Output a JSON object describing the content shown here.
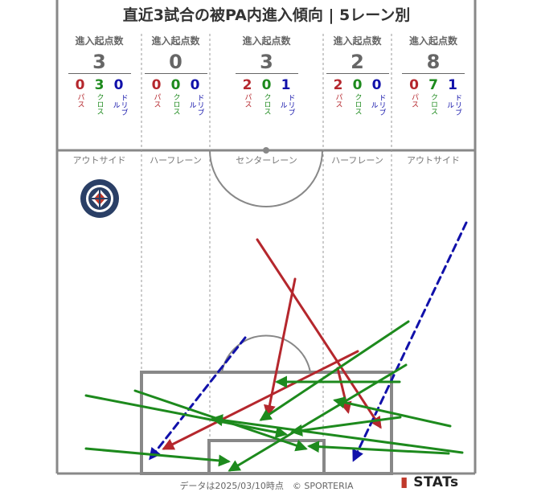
{
  "title": "直近3試合の被PA内進入傾向 | 5レーン別",
  "header_label": "進入起点数",
  "type_labels": {
    "pass": "パス",
    "cross": "クロス",
    "dribble": "ドリブル"
  },
  "colors": {
    "pass": "#b5272d",
    "cross": "#1d8a1d",
    "dribble": "#1111aa",
    "line": "#888888"
  },
  "chart_data": {
    "type": "pitch-map",
    "lanes": [
      {
        "name": "アウトサイド",
        "total": "3",
        "pass": "0",
        "cross": "3",
        "dribble": "0"
      },
      {
        "name": "ハーフレーン",
        "total": "0",
        "pass": "0",
        "cross": "0",
        "dribble": "0"
      },
      {
        "name": "センターレーン",
        "total": "3",
        "pass": "2",
        "cross": "0",
        "dribble": "1"
      },
      {
        "name": "ハーフレーン",
        "total": "2",
        "pass": "2",
        "cross": "0",
        "dribble": "0"
      },
      {
        "name": "アウトサイド",
        "total": "8",
        "pass": "0",
        "cross": "7",
        "dribble": "1"
      }
    ],
    "arrows": [
      {
        "type": "pass",
        "from": [
          320,
          298
        ],
        "to": [
          473,
          531
        ]
      },
      {
        "type": "pass",
        "from": [
          367,
          347
        ],
        "to": [
          333,
          516
        ]
      },
      {
        "type": "pass",
        "from": [
          445,
          437
        ],
        "to": [
          204,
          558
        ]
      },
      {
        "type": "pass",
        "from": [
          420,
          458
        ],
        "to": [
          433,
          512
        ]
      },
      {
        "type": "dribble",
        "from": [
          305,
          420
        ],
        "to": [
          187,
          570
        ]
      },
      {
        "type": "dribble",
        "from": [
          580,
          277
        ],
        "to": [
          440,
          572
        ]
      },
      {
        "type": "cross",
        "from": [
          107,
          492
        ],
        "to": [
          355,
          540
        ]
      },
      {
        "type": "cross",
        "from": [
          107,
          558
        ],
        "to": [
          284,
          574
        ]
      },
      {
        "type": "cross",
        "from": [
          168,
          486
        ],
        "to": [
          380,
          558
        ]
      },
      {
        "type": "cross",
        "from": [
          508,
          400
        ],
        "to": [
          325,
          522
        ]
      },
      {
        "type": "cross",
        "from": [
          505,
          454
        ],
        "to": [
          286,
          585
        ]
      },
      {
        "type": "cross",
        "from": [
          497,
          475
        ],
        "to": [
          345,
          475
        ]
      },
      {
        "type": "cross",
        "from": [
          560,
          530
        ],
        "to": [
          417,
          498
        ]
      },
      {
        "type": "cross",
        "from": [
          498,
          519
        ],
        "to": [
          364,
          537
        ]
      },
      {
        "type": "cross",
        "from": [
          558,
          564
        ],
        "to": [
          385,
          555
        ]
      },
      {
        "type": "cross",
        "from": [
          575,
          563
        ],
        "to": [
          265,
          521
        ]
      }
    ]
  },
  "team_badge": {
    "top": "KAGOSHIMA",
    "bottom": "UNITED FC"
  },
  "footer": "データは2025/03/10時点　© SPORTERIA",
  "brand": "STATs"
}
